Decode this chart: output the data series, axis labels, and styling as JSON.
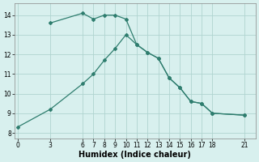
{
  "line1_x": [
    3,
    6,
    7,
    8,
    9,
    10,
    11,
    12,
    13,
    14,
    15,
    16,
    17,
    18,
    21
  ],
  "line1_y": [
    13.6,
    14.1,
    13.8,
    14.0,
    14.0,
    13.8,
    12.5,
    12.1,
    11.8,
    10.8,
    10.3,
    9.6,
    9.5,
    9.0,
    8.9
  ],
  "line2_x": [
    0,
    3,
    6,
    7,
    8,
    9,
    10,
    11,
    12,
    13,
    14,
    15,
    16,
    17,
    18,
    21
  ],
  "line2_y": [
    8.3,
    9.2,
    10.5,
    11.0,
    11.7,
    12.3,
    13.0,
    12.5,
    12.1,
    11.8,
    10.8,
    10.3,
    9.6,
    9.5,
    9.0,
    8.9
  ],
  "line_color": "#2e7d6e",
  "bg_color": "#d8f0ee",
  "grid_color": "#b0d4d0",
  "xlabel": "Humidex (Indice chaleur)",
  "xlabel_fontsize": 7,
  "xticks": [
    0,
    3,
    6,
    7,
    8,
    9,
    10,
    11,
    12,
    13,
    14,
    15,
    16,
    17,
    18,
    21
  ],
  "yticks": [
    8,
    9,
    10,
    11,
    12,
    13,
    14
  ],
  "ylim": [
    7.7,
    14.6
  ],
  "xlim": [
    -0.3,
    22.0
  ]
}
